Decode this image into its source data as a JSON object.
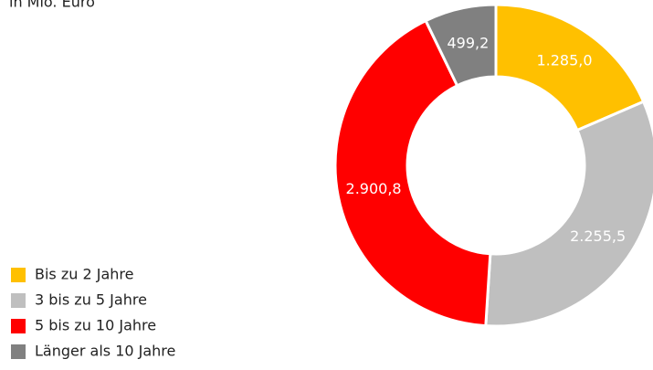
{
  "chart_data": {
    "type": "pie",
    "subtitle": "in Mio. Euro",
    "categories": [
      "Bis zu 2 Jahre",
      "3 bis zu 5 Jahre",
      "5 bis zu 10 Jahre",
      "Länger als 10 Jahre"
    ],
    "values": [
      1285.0,
      2255.5,
      2900.8,
      499.2
    ],
    "value_labels": [
      "1.285,0",
      "2.255,5",
      "2.900,8",
      "499,2"
    ],
    "colors": [
      "#ffc000",
      "#bfbfbf",
      "#ff0000",
      "#808080"
    ],
    "donut": true,
    "legend": "lower left"
  }
}
